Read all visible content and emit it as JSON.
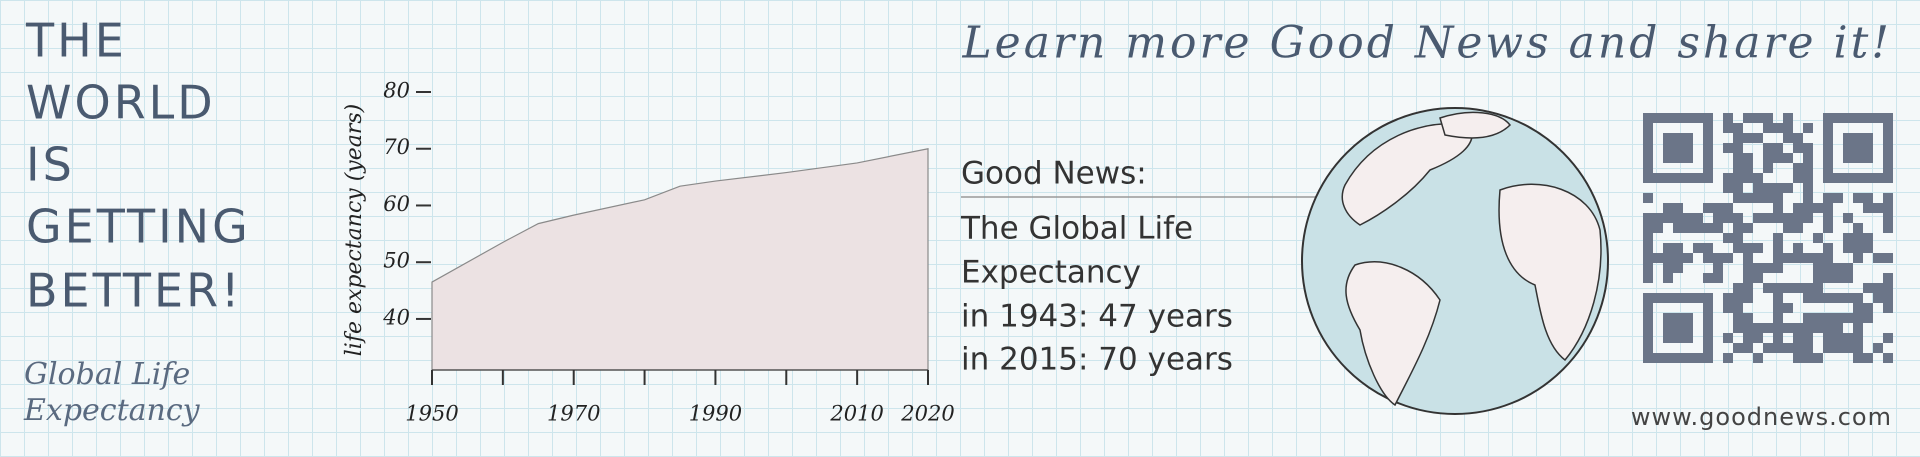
{
  "headline": [
    "THE",
    "WORLD",
    "IS",
    "GETTING",
    "BETTER!"
  ],
  "caption": [
    "Global Life",
    "Expectancy"
  ],
  "banner_title": "Learn more Good News and share it!",
  "news": {
    "heading": "Good News:",
    "lines": [
      "The Global Life",
      "Expectancy",
      "in 1943: 47 years",
      "in 2015: 70 years"
    ]
  },
  "url": "www.goodnews.com",
  "chart_data": {
    "type": "area",
    "ylabel": "life expectancy (years)",
    "x": [
      1950,
      1960,
      1965,
      1970,
      1980,
      1985,
      1990,
      2000,
      2010,
      2020
    ],
    "values": [
      46.5,
      53.5,
      56.8,
      58.3,
      61,
      63.4,
      64.3,
      65.8,
      67.5,
      70
    ],
    "color": "#ece2e3",
    "edge_color": "#8a8a8a",
    "xlim": [
      1950,
      2020
    ],
    "xticks": [
      1950,
      1970,
      1990,
      2010,
      2020
    ],
    "xticks_minor": [
      1960,
      1980,
      2000
    ],
    "ylim": [
      31,
      80
    ],
    "yticks": [
      40,
      50,
      60,
      70,
      80
    ]
  }
}
